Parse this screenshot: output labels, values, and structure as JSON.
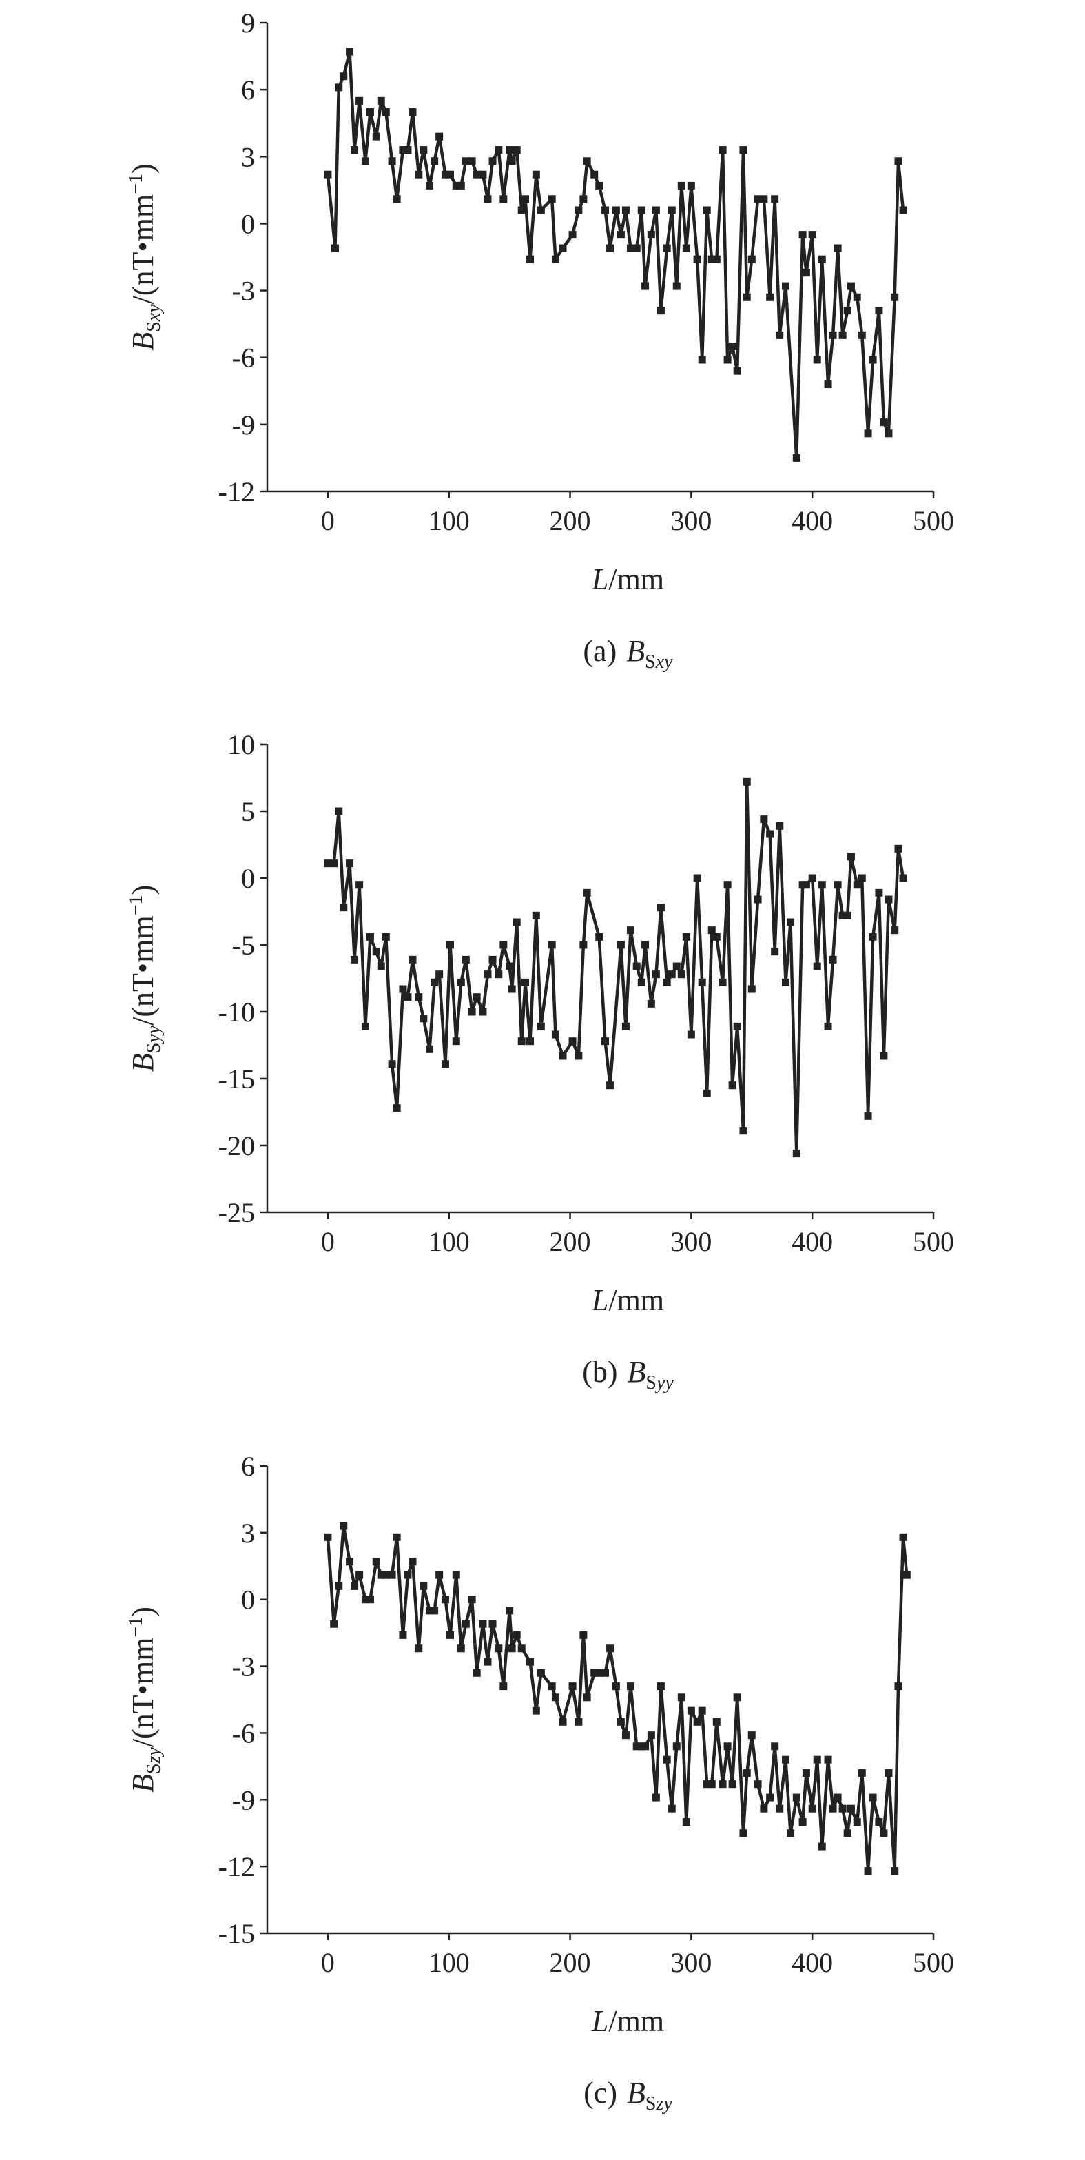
{
  "chart_data": [
    {
      "type": "line",
      "color": "#222222",
      "marker": "square",
      "x": [
        0,
        6,
        9,
        13,
        18,
        22,
        26,
        31,
        35,
        40,
        44,
        48,
        53,
        57,
        62,
        66,
        70,
        75,
        79,
        84,
        88,
        92,
        97,
        101,
        106,
        110,
        114,
        119,
        123,
        128,
        132,
        136,
        141,
        145,
        150,
        152,
        156,
        160,
        163,
        167,
        172,
        176,
        185,
        188,
        194,
        202,
        207,
        211,
        214,
        220,
        224,
        229,
        233,
        238,
        242,
        246,
        250,
        255,
        259,
        262,
        267,
        271,
        275,
        280,
        284,
        288,
        292,
        296,
        300,
        305,
        309,
        313,
        317,
        321,
        326,
        330,
        334,
        338,
        343,
        346,
        350,
        355,
        360,
        365,
        369,
        373,
        378,
        387,
        392,
        395,
        400,
        404,
        408,
        413,
        417,
        421,
        425,
        429,
        432,
        437,
        441,
        446,
        450,
        455,
        459,
        463,
        468,
        471,
        475
      ],
      "values": [
        2.2,
        -1.1,
        6.1,
        6.6,
        7.7,
        3.3,
        5.5,
        2.8,
        5.0,
        3.9,
        5.5,
        5.0,
        2.8,
        1.1,
        3.3,
        3.3,
        5.0,
        2.2,
        3.3,
        1.7,
        2.8,
        3.9,
        2.2,
        2.2,
        1.7,
        1.7,
        2.8,
        2.8,
        2.2,
        2.2,
        1.1,
        2.8,
        3.3,
        1.1,
        3.3,
        2.8,
        3.3,
        0.6,
        1.1,
        -1.6,
        2.2,
        0.6,
        1.1,
        -1.6,
        -1.1,
        -0.5,
        0.6,
        1.1,
        2.8,
        2.2,
        1.7,
        0.6,
        -1.1,
        0.6,
        -0.5,
        0.6,
        -1.1,
        -1.1,
        0.6,
        -2.8,
        -0.5,
        0.6,
        -3.9,
        -1.1,
        0.6,
        -2.8,
        1.7,
        -1.1,
        1.7,
        -1.6,
        -6.1,
        0.6,
        -1.6,
        -1.6,
        3.3,
        -6.1,
        -5.5,
        -6.6,
        3.3,
        -3.3,
        -1.6,
        1.1,
        1.1,
        -3.3,
        1.1,
        -5.0,
        -2.8,
        -10.5,
        -0.5,
        -2.2,
        -0.5,
        -6.1,
        -1.6,
        -7.2,
        -5.0,
        -1.1,
        -5.0,
        -3.9,
        -2.8,
        -3.3,
        -5.0,
        -9.4,
        -6.1,
        -3.9,
        -8.9,
        -9.4,
        -3.3,
        2.8,
        0.6
      ],
      "xlim": [
        -50,
        500
      ],
      "xticks": [
        0,
        100,
        200,
        300,
        400,
        500
      ],
      "ylim": [
        -12,
        9
      ],
      "yticks": [
        -12,
        -9,
        -6,
        -3,
        0,
        3,
        6,
        9
      ],
      "y_label": {
        "symbol": "B",
        "sub_s": "S",
        "sub_i": "xy",
        "unit": "/(nT•mm",
        "unit_sup": "−1",
        "unit_end": ")"
      },
      "x_label": {
        "symbol": "L",
        "unit": "/mm"
      },
      "caption": {
        "prefix": "(a)",
        "symbol": "B",
        "sub_s": "S",
        "sub_i": "xy"
      }
    },
    {
      "type": "line",
      "color": "#222222",
      "marker": "square",
      "x": [
        0,
        5,
        9,
        13,
        18,
        22,
        26,
        31,
        35,
        40,
        44,
        48,
        53,
        57,
        62,
        66,
        70,
        75,
        79,
        84,
        88,
        92,
        97,
        101,
        106,
        110,
        114,
        119,
        123,
        128,
        132,
        136,
        141,
        145,
        150,
        152,
        156,
        160,
        163,
        167,
        172,
        176,
        185,
        188,
        194,
        202,
        207,
        211,
        214,
        224,
        229,
        233,
        242,
        246,
        250,
        255,
        259,
        262,
        267,
        271,
        275,
        280,
        284,
        288,
        292,
        296,
        300,
        305,
        309,
        313,
        317,
        321,
        326,
        330,
        334,
        338,
        343,
        346,
        350,
        355,
        360,
        365,
        369,
        373,
        378,
        382,
        387,
        392,
        395,
        400,
        404,
        408,
        413,
        417,
        421,
        425,
        429,
        432,
        437,
        441,
        446,
        450,
        455,
        459,
        463,
        468,
        471,
        475
      ],
      "values": [
        1.1,
        1.1,
        5.0,
        -2.2,
        1.1,
        -6.1,
        -0.5,
        -11.1,
        -4.4,
        -5.5,
        -6.6,
        -4.4,
        -13.9,
        -17.2,
        -8.3,
        -8.9,
        -6.1,
        -8.9,
        -10.5,
        -12.8,
        -7.8,
        -7.2,
        -13.9,
        -5.0,
        -12.2,
        -7.8,
        -6.1,
        -10.0,
        -8.9,
        -10.0,
        -7.2,
        -6.1,
        -7.2,
        -5.0,
        -6.6,
        -8.3,
        -3.3,
        -12.2,
        -7.8,
        -12.2,
        -2.8,
        -11.1,
        -5.0,
        -11.7,
        -13.3,
        -12.2,
        -13.3,
        -5.0,
        -1.1,
        -4.4,
        -12.2,
        -15.5,
        -5.0,
        -11.1,
        -3.9,
        -6.6,
        -7.8,
        -5.0,
        -9.4,
        -7.2,
        -2.2,
        -7.8,
        -7.2,
        -6.6,
        -7.2,
        -4.4,
        -11.7,
        0,
        -7.8,
        -16.1,
        -3.9,
        -4.4,
        -7.8,
        -0.5,
        -15.5,
        -11.1,
        -18.9,
        7.2,
        -8.3,
        -1.6,
        4.4,
        3.3,
        -5.5,
        3.9,
        -7.8,
        -3.3,
        -20.6,
        -0.5,
        -0.5,
        0,
        -6.6,
        -0.5,
        -11.1,
        -6.1,
        -0.5,
        -2.8,
        -2.8,
        1.6,
        -0.5,
        0,
        -17.8,
        -4.4,
        -1.1,
        -13.3,
        -1.6,
        -3.9,
        2.2,
        0
      ],
      "xlim": [
        -50,
        500
      ],
      "xticks": [
        0,
        100,
        200,
        300,
        400,
        500
      ],
      "ylim": [
        -25,
        10
      ],
      "yticks": [
        -25,
        -20,
        -15,
        -10,
        -5,
        0,
        5,
        10
      ],
      "y_label": {
        "symbol": "B",
        "sub_s": "S",
        "sub_i": "yy",
        "unit": "/(nT•mm",
        "unit_sup": "−1",
        "unit_end": ")"
      },
      "x_label": {
        "symbol": "L",
        "unit": "/mm"
      },
      "caption": {
        "prefix": "(b)",
        "symbol": "B",
        "sub_s": "S",
        "sub_i": "yy"
      }
    },
    {
      "type": "line",
      "color": "#222222",
      "marker": "square",
      "x": [
        0,
        5,
        9,
        13,
        18,
        22,
        26,
        31,
        35,
        40,
        44,
        48,
        53,
        57,
        62,
        66,
        70,
        75,
        79,
        84,
        88,
        92,
        97,
        101,
        106,
        110,
        114,
        119,
        123,
        128,
        132,
        136,
        141,
        145,
        150,
        152,
        156,
        160,
        167,
        172,
        176,
        185,
        188,
        194,
        202,
        207,
        211,
        214,
        220,
        224,
        229,
        233,
        238,
        242,
        246,
        250,
        255,
        259,
        262,
        267,
        271,
        275,
        280,
        284,
        288,
        292,
        296,
        300,
        305,
        309,
        313,
        317,
        321,
        326,
        330,
        334,
        338,
        343,
        346,
        350,
        355,
        360,
        365,
        369,
        373,
        378,
        382,
        387,
        392,
        395,
        400,
        404,
        408,
        413,
        417,
        421,
        425,
        429,
        432,
        437,
        441,
        446,
        450,
        455,
        459,
        463,
        468,
        471,
        475,
        478
      ],
      "values": [
        2.8,
        -1.1,
        0.6,
        3.3,
        1.7,
        0.6,
        1.1,
        0,
        0,
        1.7,
        1.1,
        1.1,
        1.1,
        2.8,
        -1.6,
        1.1,
        1.7,
        -2.2,
        0.6,
        -0.5,
        -0.5,
        1.1,
        0,
        -1.6,
        1.1,
        -2.2,
        -1.1,
        0,
        -3.3,
        -1.1,
        -2.8,
        -1.1,
        -2.2,
        -3.9,
        -0.5,
        -2.2,
        -1.6,
        -2.2,
        -2.8,
        -5.0,
        -3.3,
        -3.9,
        -4.4,
        -5.5,
        -3.9,
        -5.5,
        -1.6,
        -4.4,
        -3.3,
        -3.3,
        -3.3,
        -2.2,
        -3.9,
        -5.5,
        -6.1,
        -3.9,
        -6.6,
        -6.6,
        -6.6,
        -6.1,
        -8.9,
        -3.9,
        -7.2,
        -9.4,
        -6.6,
        -4.4,
        -10.0,
        -5.0,
        -5.5,
        -5.0,
        -8.3,
        -8.3,
        -5.5,
        -8.3,
        -6.6,
        -8.3,
        -4.4,
        -10.5,
        -7.8,
        -6.1,
        -8.3,
        -9.4,
        -8.9,
        -6.6,
        -9.4,
        -7.2,
        -10.5,
        -8.9,
        -10.0,
        -7.8,
        -9.4,
        -7.2,
        -11.1,
        -7.2,
        -9.4,
        -8.9,
        -9.4,
        -10.5,
        -9.4,
        -10.0,
        -7.8,
        -12.2,
        -8.9,
        -10.0,
        -10.5,
        -7.8,
        -12.2,
        -3.9,
        2.8,
        1.1
      ],
      "xlim": [
        -50,
        500
      ],
      "xticks": [
        0,
        100,
        200,
        300,
        400,
        500
      ],
      "ylim": [
        -15,
        6
      ],
      "yticks": [
        -15,
        -12,
        -9,
        -6,
        -3,
        0,
        3,
        6
      ],
      "y_label": {
        "symbol": "B",
        "sub_s": "S",
        "sub_i": "zy",
        "unit": "/(nT•mm",
        "unit_sup": "−1",
        "unit_end": ")"
      },
      "x_label": {
        "symbol": "L",
        "unit": "/mm"
      },
      "caption": {
        "prefix": "(c)",
        "symbol": "B",
        "sub_s": "S",
        "sub_i": "zy"
      }
    }
  ]
}
